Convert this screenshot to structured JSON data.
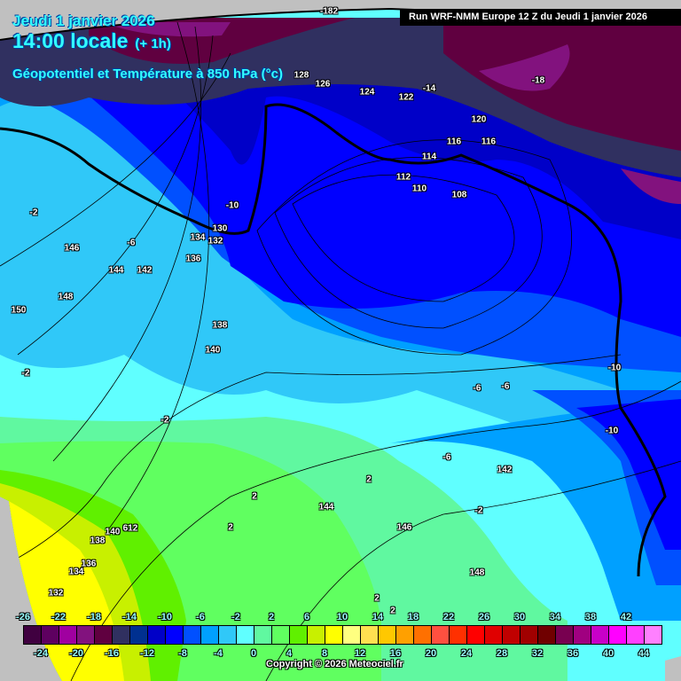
{
  "header": {
    "date": "Jeudi 1 janvier 2026",
    "time": "14:00 locale",
    "offset": "(+ 1h)",
    "parameter": "Géopotentiel et Température à 850 hPa (°c)",
    "run": "Run WRF-NMM Europe 12 Z du Jeudi 1 janvier 2026"
  },
  "legend": {
    "unit": "°c",
    "top_ticks": [
      "-26",
      "-22",
      "-18",
      "-14",
      "-10",
      "-6",
      "-2",
      "2",
      "6",
      "10",
      "14",
      "18",
      "22",
      "26",
      "30",
      "34",
      "38",
      "42"
    ],
    "bottom_ticks": [
      "-24",
      "-20",
      "-16",
      "-12",
      "-8",
      "-4",
      "0",
      "4",
      "8",
      "12",
      "16",
      "20",
      "24",
      "28",
      "32",
      "36",
      "40",
      "44"
    ],
    "colors": [
      "#400040",
      "#5e0060",
      "#a000a0",
      "#82127e",
      "#600040",
      "#303060",
      "#003090",
      "#0000c8",
      "#0000ff",
      "#0050ff",
      "#00a0ff",
      "#30c8f8",
      "#60ffff",
      "#60f8a0",
      "#60ff60",
      "#60f000",
      "#c8f000",
      "#ffff00",
      "#ffff80",
      "#ffe050",
      "#ffc800",
      "#ffa000",
      "#ff7000",
      "#ff5040",
      "#ff3000",
      "#ff0000",
      "#e00000",
      "#c00000",
      "#a00000",
      "#700000",
      "#780050",
      "#a00080",
      "#c800c8",
      "#ff00ff",
      "#ff40ff",
      "#ff80ff"
    ]
  },
  "map_labels": [
    "126",
    "124",
    "122",
    "-14",
    "120",
    "116",
    "116",
    "114",
    "112",
    "110",
    "108",
    "-18",
    "-10",
    "134",
    "130",
    "132",
    "136",
    "-6",
    "146",
    "144",
    "142",
    "-2",
    "148",
    "150",
    "138",
    "140",
    "-2",
    "-2",
    "-6",
    "-6",
    "-10",
    "-10",
    "-6",
    "142",
    "2",
    "2",
    "144",
    "2",
    "146",
    "148",
    "2",
    "2",
    "140",
    "138",
    "136",
    "134",
    "132",
    "-2",
    "612",
    "-182",
    "128"
  ],
  "copyright": "Copyright © 2026 Meteociel.fr"
}
